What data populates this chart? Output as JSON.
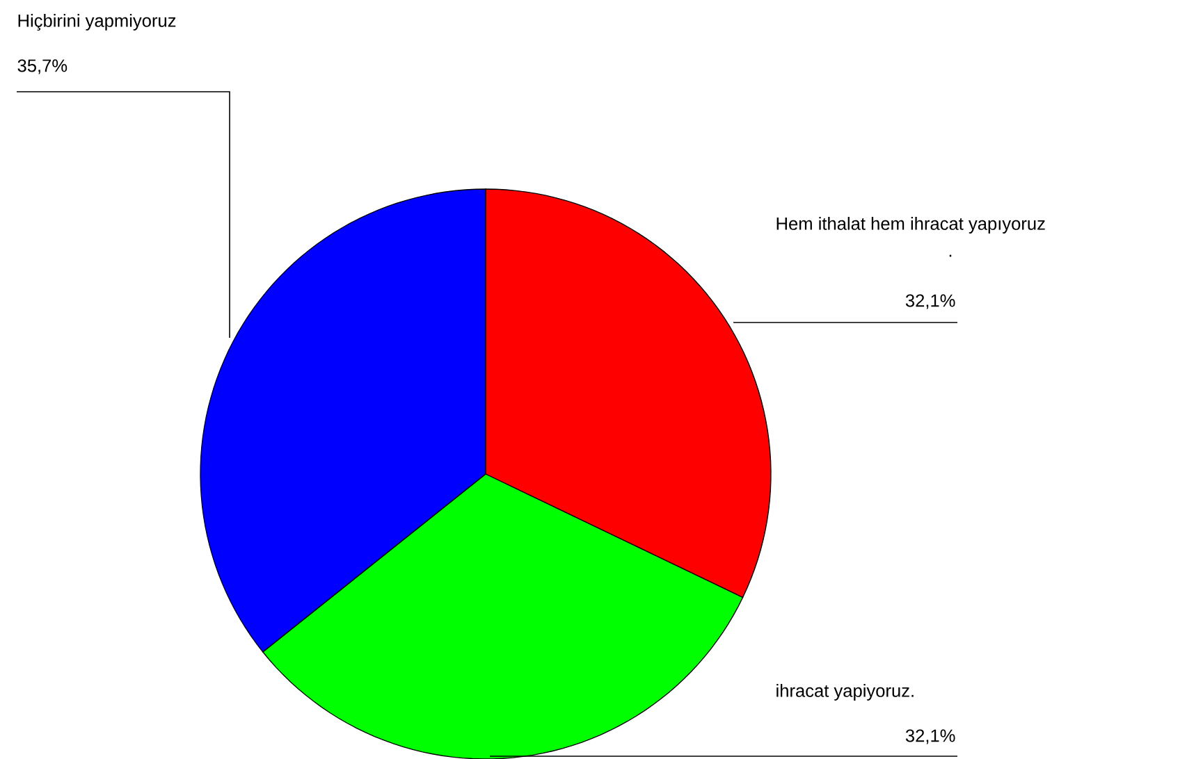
{
  "chart_data": {
    "type": "pie",
    "categories": [
      "Hem ithalat hem ihracat yapıyoruz",
      "ihracat yapiyoruz.",
      "Hiçbirini yapmiyoruz"
    ],
    "values": [
      32.1,
      32.1,
      35.7
    ],
    "colors": [
      "#ff0000",
      "#00ff00",
      "#0000ff"
    ],
    "value_labels": [
      "32,1%",
      "32,1%",
      "35,7%"
    ],
    "annotations": [
      "."
    ]
  }
}
